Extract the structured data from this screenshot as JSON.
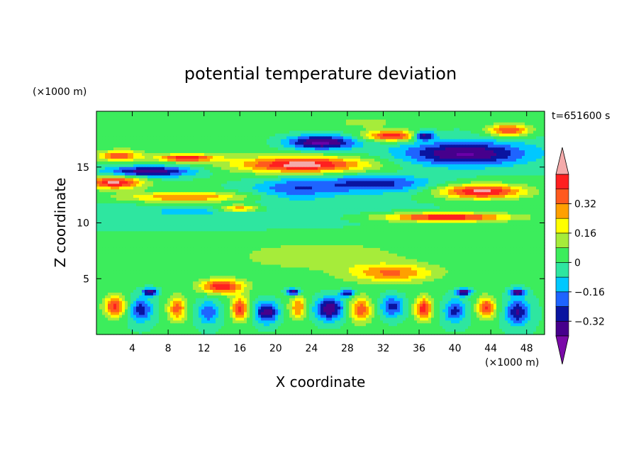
{
  "chart_data": {
    "type": "heatmap",
    "title": "potential temperature deviation",
    "time_label": "t=651600 s",
    "xlabel": "X coordinate",
    "ylabel": "Z coordinate",
    "x_unit": "(×1000 m)",
    "y_unit": "(×1000 m)",
    "xlim": [
      0,
      50
    ],
    "ylim": [
      0,
      20
    ],
    "x_ticks": [
      "4",
      "8",
      "12",
      "16",
      "20",
      "24",
      "28",
      "32",
      "36",
      "40",
      "44",
      "48"
    ],
    "y_ticks": [
      "5",
      "10",
      "15"
    ],
    "colorbar": {
      "labels": [
        "0.32",
        "0.16",
        "0",
        "−0.16",
        "−0.32"
      ],
      "bins": [
        {
          "lo": -0.48,
          "hi": -0.4,
          "color": "#6a00a8"
        },
        {
          "lo": -0.4,
          "hi": -0.32,
          "color": "#46008c"
        },
        {
          "lo": -0.32,
          "hi": -0.24,
          "color": "#0a14a0"
        },
        {
          "lo": -0.24,
          "hi": -0.16,
          "color": "#1e64ff"
        },
        {
          "lo": -0.16,
          "hi": -0.08,
          "color": "#00c8ff"
        },
        {
          "lo": -0.08,
          "hi": 0.0,
          "color": "#2ee6a0"
        },
        {
          "lo": 0.0,
          "hi": 0.08,
          "color": "#3ced5c"
        },
        {
          "lo": 0.08,
          "hi": 0.16,
          "color": "#a6ec3a"
        },
        {
          "lo": 0.16,
          "hi": 0.24,
          "color": "#ffff00"
        },
        {
          "lo": 0.24,
          "hi": 0.32,
          "color": "#ffa000"
        },
        {
          "lo": 0.32,
          "hi": 0.4,
          "color": "#ff5a1e"
        },
        {
          "lo": 0.4,
          "hi": 0.48,
          "color": "#ff2020"
        },
        {
          "lo": 0.48,
          "hi": 0.6,
          "color": "#f4aaaa"
        }
      ],
      "extend": "both",
      "min_cap_color": "#7a0aa8",
      "max_cap_color": "#f4aaaa"
    },
    "features": [
      {
        "x": 25,
        "y": 9,
        "rx": 25,
        "ry": 11,
        "v": 0.04
      },
      {
        "x": 20,
        "y": 11,
        "rx": 22,
        "ry": 2.2,
        "v": -0.09
      },
      {
        "x": 12,
        "y": 17,
        "rx": 12,
        "ry": 1.8,
        "v": 0.05
      },
      {
        "x": 6,
        "y": 14.6,
        "rx": 6,
        "ry": 0.6,
        "v": -0.4
      },
      {
        "x": 10,
        "y": 15.8,
        "rx": 4,
        "ry": 0.4,
        "v": 0.45
      },
      {
        "x": 2,
        "y": 13.6,
        "rx": 4,
        "ry": 0.7,
        "v": 0.5
      },
      {
        "x": 2.5,
        "y": 16.0,
        "rx": 3,
        "ry": 0.6,
        "v": 0.38
      },
      {
        "x": 10,
        "y": 12.3,
        "rx": 9,
        "ry": 0.6,
        "v": 0.34
      },
      {
        "x": 23,
        "y": 15.2,
        "rx": 9,
        "ry": 0.9,
        "v": 0.5
      },
      {
        "x": 25,
        "y": 17.2,
        "rx": 5,
        "ry": 0.8,
        "v": -0.45
      },
      {
        "x": 33,
        "y": 17.8,
        "rx": 4,
        "ry": 0.6,
        "v": 0.45
      },
      {
        "x": 41,
        "y": 16.2,
        "rx": 9,
        "ry": 1.4,
        "v": -0.42
      },
      {
        "x": 43,
        "y": 12.8,
        "rx": 6,
        "ry": 0.8,
        "v": 0.5
      },
      {
        "x": 31,
        "y": 13.5,
        "rx": 8,
        "ry": 1.0,
        "v": -0.3
      },
      {
        "x": 22,
        "y": 13.1,
        "rx": 6,
        "ry": 1.2,
        "v": -0.22
      },
      {
        "x": 39,
        "y": 10.5,
        "rx": 9,
        "ry": 0.5,
        "v": 0.48
      },
      {
        "x": 16,
        "y": 11.3,
        "rx": 3,
        "ry": 0.4,
        "v": 0.33
      },
      {
        "x": 36.5,
        "y": 17.8,
        "rx": 1.5,
        "ry": 0.5,
        "v": -0.45
      },
      {
        "x": 46,
        "y": 18.3,
        "rx": 3,
        "ry": 0.7,
        "v": 0.4
      },
      {
        "x": 30,
        "y": 19.0,
        "rx": 5,
        "ry": 0.7,
        "v": 0.1
      },
      {
        "x": 10,
        "y": 11.0,
        "rx": 5,
        "ry": 0.5,
        "v": -0.08
      },
      {
        "x": 25,
        "y": 7.0,
        "rx": 12,
        "ry": 1.5,
        "v": 0.1
      },
      {
        "x": 33,
        "y": 5.5,
        "rx": 6,
        "ry": 1.0,
        "v": 0.3
      },
      {
        "x": 14,
        "y": 4.3,
        "rx": 3,
        "ry": 0.8,
        "v": 0.45
      },
      {
        "x": 2,
        "y": 2.5,
        "rx": 1.5,
        "ry": 1.2,
        "v": 0.42
      },
      {
        "x": 5,
        "y": 2.2,
        "rx": 1.5,
        "ry": 1.3,
        "v": -0.3
      },
      {
        "x": 9,
        "y": 2.3,
        "rx": 1.3,
        "ry": 1.4,
        "v": 0.35
      },
      {
        "x": 12.5,
        "y": 2.0,
        "rx": 1.5,
        "ry": 1.4,
        "v": -0.24
      },
      {
        "x": 16,
        "y": 2.3,
        "rx": 1.2,
        "ry": 1.3,
        "v": 0.42
      },
      {
        "x": 19,
        "y": 2.0,
        "rx": 1.6,
        "ry": 1.2,
        "v": -0.4
      },
      {
        "x": 22.5,
        "y": 2.4,
        "rx": 1.2,
        "ry": 1.3,
        "v": 0.3
      },
      {
        "x": 26,
        "y": 2.3,
        "rx": 2,
        "ry": 1.3,
        "v": -0.42
      },
      {
        "x": 29.5,
        "y": 2.2,
        "rx": 1.5,
        "ry": 1.4,
        "v": 0.36
      },
      {
        "x": 33,
        "y": 2.5,
        "rx": 1.6,
        "ry": 1.2,
        "v": -0.3
      },
      {
        "x": 36.5,
        "y": 2.3,
        "rx": 1.2,
        "ry": 1.3,
        "v": 0.44
      },
      {
        "x": 40,
        "y": 2.1,
        "rx": 1.5,
        "ry": 1.3,
        "v": -0.28
      },
      {
        "x": 43.5,
        "y": 2.4,
        "rx": 1.3,
        "ry": 1.2,
        "v": 0.4
      },
      {
        "x": 47,
        "y": 2.0,
        "rx": 1.6,
        "ry": 1.4,
        "v": -0.34
      },
      {
        "x": 6,
        "y": 3.8,
        "rx": 1.0,
        "ry": 0.4,
        "v": -0.42
      },
      {
        "x": 22,
        "y": 3.8,
        "rx": 1.0,
        "ry": 0.4,
        "v": -0.42
      },
      {
        "x": 41,
        "y": 3.8,
        "rx": 1.0,
        "ry": 0.4,
        "v": -0.42
      },
      {
        "x": 47,
        "y": 3.8,
        "rx": 1.0,
        "ry": 0.4,
        "v": -0.4
      },
      {
        "x": 28,
        "y": 3.7,
        "rx": 1.0,
        "ry": 0.4,
        "v": -0.36
      }
    ]
  }
}
